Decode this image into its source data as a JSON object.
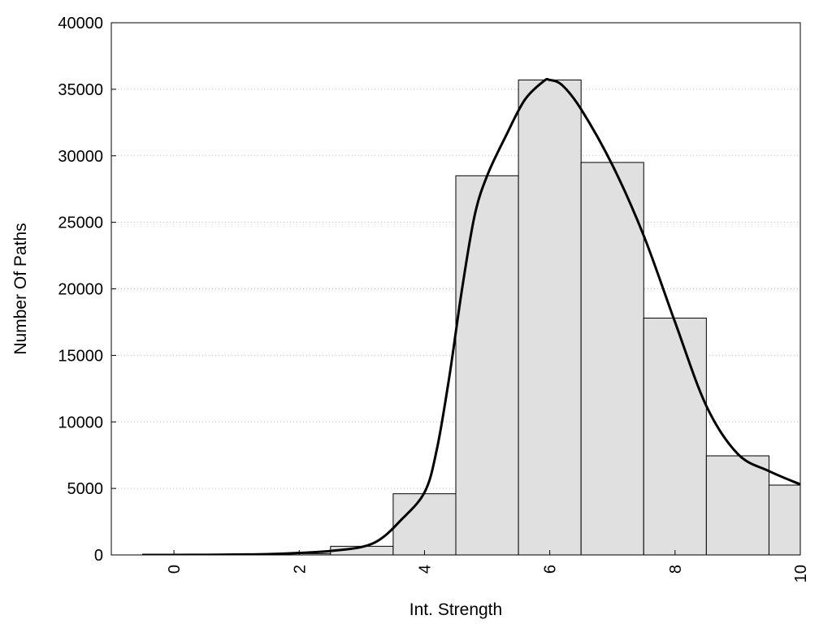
{
  "chart_data": {
    "type": "bar",
    "title": "",
    "xlabel": "Int. Strength",
    "ylabel": "Number Of Paths",
    "xlim": [
      -1,
      10
    ],
    "ylim": [
      0,
      40000
    ],
    "x_ticks": [
      "0",
      "2",
      "4",
      "6",
      "8",
      "10"
    ],
    "y_ticks": [
      "0",
      "5000",
      "10000",
      "15000",
      "20000",
      "25000",
      "30000",
      "35000",
      "40000"
    ],
    "grid": "horizontal dotted",
    "bar_color": "#e0e0e0",
    "bars": {
      "x": [
        0,
        1,
        2,
        3,
        4,
        5,
        6,
        7,
        8,
        9,
        10
      ],
      "values": [
        60,
        50,
        100,
        650,
        4600,
        28500,
        35700,
        29500,
        17800,
        7450,
        5250
      ]
    },
    "curve": {
      "x": [
        0,
        0.5,
        1,
        1.5,
        2,
        2.5,
        3,
        3.3,
        3.6,
        4,
        4.2,
        4.4,
        4.6,
        4.8,
        5,
        5.3,
        5.6,
        5.9,
        6,
        6.2,
        6.5,
        7,
        7.5,
        8,
        8.5,
        9,
        9.5,
        10
      ],
      "values": [
        0,
        10,
        30,
        60,
        150,
        300,
        600,
        1200,
        2500,
        4700,
        8000,
        13500,
        20000,
        25500,
        28500,
        31500,
        34200,
        35600,
        35700,
        35300,
        33500,
        29300,
        24000,
        17500,
        11200,
        7600,
        6300,
        5300
      ]
    }
  }
}
